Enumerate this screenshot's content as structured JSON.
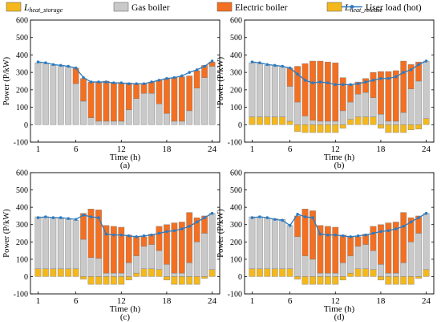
{
  "legend": [
    {
      "key": "heat_storage",
      "label_main": "L",
      "label_sub": "heat_storage",
      "color": "#f5b81c",
      "kind": "bar"
    },
    {
      "key": "gas",
      "label": "Gas boiler",
      "color": "#c9c9c9",
      "kind": "bar"
    },
    {
      "key": "electric",
      "label": "Electric boiler",
      "color": "#f36f21",
      "kind": "bar"
    },
    {
      "key": "heat_release",
      "label_main": "L",
      "label_sub": "heat_release",
      "color": "#f5b81c",
      "kind": "bar"
    },
    {
      "key": "load",
      "label": "User load (hot)",
      "color": "#2e7bbf",
      "kind": "line"
    }
  ],
  "chart_data": [
    {
      "type": "bar",
      "panel": "(a)",
      "xlabel": "Time (h)",
      "ylabel": "Power (P/kW)",
      "ylim": [
        -100,
        600
      ],
      "yticks": [
        -100,
        0,
        100,
        200,
        300,
        400,
        500,
        600
      ],
      "xticks": [
        1,
        6,
        12,
        18,
        24
      ],
      "x": [
        1,
        2,
        3,
        4,
        5,
        6,
        7,
        8,
        9,
        10,
        11,
        12,
        13,
        14,
        15,
        16,
        17,
        18,
        19,
        20,
        21,
        22,
        23,
        24
      ],
      "series": [
        {
          "key": "storage",
          "values": [
            0,
            0,
            0,
            0,
            0,
            0,
            0,
            0,
            0,
            0,
            0,
            0,
            0,
            0,
            0,
            0,
            0,
            0,
            0,
            0,
            0,
            0,
            0,
            0
          ]
        },
        {
          "key": "gas",
          "values": [
            355,
            350,
            340,
            335,
            330,
            235,
            135,
            40,
            20,
            20,
            20,
            20,
            85,
            150,
            180,
            180,
            120,
            65,
            20,
            20,
            80,
            210,
            270,
            335
          ]
        },
        {
          "key": "electric",
          "values": [
            0,
            0,
            0,
            0,
            0,
            90,
            130,
            205,
            225,
            230,
            220,
            220,
            155,
            85,
            55,
            65,
            135,
            200,
            250,
            255,
            200,
            100,
            70,
            25
          ]
        },
        {
          "key": "release",
          "values": [
            0,
            0,
            0,
            0,
            0,
            0,
            0,
            0,
            0,
            0,
            0,
            0,
            0,
            0,
            0,
            0,
            0,
            0,
            0,
            0,
            0,
            0,
            0,
            0
          ]
        }
      ],
      "load": [
        360,
        355,
        345,
        340,
        335,
        325,
        270,
        245,
        245,
        245,
        240,
        240,
        235,
        235,
        235,
        245,
        255,
        265,
        270,
        280,
        300,
        315,
        335,
        365
      ]
    },
    {
      "type": "bar",
      "panel": "(b)",
      "xlabel": "Time (h)",
      "ylabel": "Power (P/kW)",
      "ylim": [
        -100,
        600
      ],
      "yticks": [
        -100,
        0,
        100,
        200,
        300,
        400,
        500,
        600
      ],
      "xticks": [
        1,
        6,
        12,
        18,
        24
      ],
      "x": [
        1,
        2,
        3,
        4,
        5,
        6,
        7,
        8,
        9,
        10,
        11,
        12,
        13,
        14,
        15,
        16,
        17,
        18,
        19,
        20,
        21,
        22,
        23,
        24
      ],
      "series": [
        {
          "key": "storage",
          "values": [
            45,
            45,
            45,
            45,
            45,
            20,
            0,
            0,
            0,
            0,
            0,
            0,
            0,
            30,
            45,
            45,
            45,
            0,
            0,
            0,
            0,
            0,
            0,
            35
          ]
        },
        {
          "key": "gas",
          "values": [
            310,
            305,
            295,
            290,
            285,
            200,
            130,
            50,
            25,
            20,
            20,
            20,
            80,
            100,
            130,
            140,
            110,
            60,
            20,
            20,
            70,
            205,
            250,
            330
          ]
        },
        {
          "key": "electric",
          "values": [
            0,
            0,
            0,
            0,
            0,
            105,
            205,
            300,
            340,
            345,
            340,
            335,
            190,
            100,
            70,
            80,
            145,
            245,
            285,
            290,
            295,
            140,
            110,
            0
          ]
        },
        {
          "key": "release",
          "values": [
            0,
            0,
            0,
            0,
            0,
            0,
            -40,
            -45,
            -45,
            -45,
            -45,
            -45,
            -20,
            0,
            0,
            0,
            0,
            -20,
            -45,
            -45,
            -45,
            -30,
            -25,
            0
          ]
        }
      ],
      "load": [
        360,
        355,
        345,
        340,
        335,
        325,
        290,
        255,
        240,
        245,
        240,
        230,
        230,
        230,
        235,
        245,
        255,
        265,
        265,
        275,
        300,
        315,
        345,
        365
      ]
    },
    {
      "type": "bar",
      "panel": "(c)",
      "xlabel": "Time (h)",
      "ylabel": "Power (P/kW)",
      "ylim": [
        -100,
        600
      ],
      "yticks": [
        -100,
        0,
        100,
        200,
        300,
        400,
        500,
        600
      ],
      "xticks": [
        1,
        6,
        12,
        18,
        24
      ],
      "x": [
        1,
        2,
        3,
        4,
        5,
        6,
        7,
        8,
        9,
        10,
        11,
        12,
        13,
        14,
        15,
        16,
        17,
        18,
        19,
        20,
        21,
        22,
        23,
        24
      ],
      "series": [
        {
          "key": "storage",
          "values": [
            45,
            45,
            45,
            45,
            45,
            45,
            0,
            0,
            0,
            0,
            0,
            0,
            0,
            20,
            45,
            45,
            40,
            0,
            0,
            0,
            0,
            0,
            0,
            40
          ]
        },
        {
          "key": "gas",
          "values": [
            300,
            300,
            295,
            290,
            285,
            280,
            215,
            110,
            105,
            20,
            20,
            20,
            80,
            100,
            130,
            140,
            110,
            70,
            20,
            20,
            80,
            200,
            250,
            325
          ]
        },
        {
          "key": "electric",
          "values": [
            0,
            0,
            0,
            0,
            0,
            0,
            150,
            280,
            280,
            275,
            270,
            265,
            160,
            110,
            55,
            60,
            140,
            230,
            290,
            295,
            290,
            140,
            100,
            0
          ]
        },
        {
          "key": "release",
          "values": [
            0,
            0,
            0,
            0,
            0,
            0,
            -15,
            -45,
            -45,
            -45,
            -45,
            -45,
            -20,
            0,
            0,
            0,
            0,
            -20,
            -45,
            -45,
            -45,
            -45,
            -10,
            0
          ]
        }
      ],
      "load": [
        340,
        345,
        340,
        340,
        335,
        330,
        355,
        345,
        340,
        245,
        240,
        240,
        235,
        230,
        235,
        240,
        250,
        260,
        265,
        275,
        290,
        315,
        340,
        365
      ]
    },
    {
      "type": "bar",
      "panel": "(d)",
      "xlabel": "Time (h)",
      "ylabel": "Power (P/kW)",
      "ylim": [
        -100,
        600
      ],
      "yticks": [
        -100,
        0,
        100,
        200,
        300,
        400,
        500,
        600
      ],
      "xticks": [
        1,
        6,
        12,
        18,
        24
      ],
      "x": [
        1,
        2,
        3,
        4,
        5,
        6,
        7,
        8,
        9,
        10,
        11,
        12,
        13,
        14,
        15,
        16,
        17,
        18,
        19,
        20,
        21,
        22,
        23,
        24
      ],
      "series": [
        {
          "key": "storage",
          "values": [
            45,
            45,
            45,
            45,
            45,
            45,
            0,
            0,
            0,
            0,
            0,
            0,
            0,
            20,
            45,
            45,
            40,
            0,
            0,
            0,
            0,
            0,
            0,
            40
          ]
        },
        {
          "key": "gas",
          "values": [
            300,
            300,
            295,
            290,
            285,
            250,
            230,
            120,
            100,
            20,
            20,
            20,
            80,
            100,
            130,
            140,
            110,
            70,
            20,
            20,
            80,
            200,
            250,
            325
          ]
        },
        {
          "key": "electric",
          "values": [
            0,
            0,
            0,
            0,
            0,
            0,
            120,
            270,
            280,
            275,
            270,
            265,
            160,
            110,
            55,
            60,
            140,
            230,
            290,
            295,
            290,
            140,
            100,
            0
          ]
        },
        {
          "key": "release",
          "values": [
            0,
            0,
            0,
            0,
            0,
            0,
            -15,
            -45,
            -45,
            -45,
            -45,
            -45,
            -20,
            0,
            0,
            0,
            0,
            -20,
            -45,
            -45,
            -45,
            -45,
            -10,
            0
          ]
        }
      ],
      "load": [
        340,
        345,
        340,
        330,
        325,
        295,
        360,
        345,
        340,
        245,
        240,
        240,
        235,
        230,
        235,
        240,
        250,
        260,
        265,
        275,
        290,
        315,
        340,
        365
      ]
    }
  ]
}
